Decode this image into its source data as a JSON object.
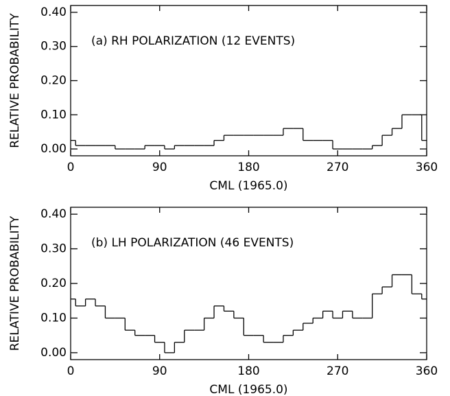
{
  "chart_data": [
    {
      "type": "histogram",
      "annotation": "(a) RH POLARIZATION (12 EVENTS)",
      "xlabel": "CML (1965.0)",
      "ylabel": "RELATIVE PROBABILITY",
      "bins": [
        0,
        5,
        15,
        25,
        35,
        45,
        55,
        65,
        75,
        85,
        95,
        105,
        115,
        125,
        135,
        145,
        155,
        165,
        175,
        185,
        195,
        205,
        215,
        225,
        235,
        245,
        255,
        265,
        275,
        285,
        295,
        305,
        315,
        325,
        335,
        345,
        355,
        360
      ],
      "values": [
        0.025,
        0.01,
        0.01,
        0.01,
        0.01,
        0,
        0,
        0,
        0.01,
        0.01,
        0,
        0.01,
        0.01,
        0.01,
        0.01,
        0.025,
        0.04,
        0.04,
        0.04,
        0.04,
        0.04,
        0.04,
        0.06,
        0.06,
        0.025,
        0.025,
        0.025,
        0,
        0,
        0,
        0,
        0.01,
        0.04,
        0.06,
        0.1,
        0.1,
        0.025
      ],
      "color": "#000000",
      "xlim": [
        0,
        360
      ],
      "xticks": [
        0,
        90,
        180,
        270,
        360
      ],
      "ylim": [
        -0.02,
        0.42
      ],
      "yticks": [
        {
          "value": 0,
          "label": "0.00"
        },
        {
          "value": 0.1,
          "label": "0.10"
        },
        {
          "value": 0.2,
          "label": "0.20"
        },
        {
          "value": 0.3,
          "label": "0.30"
        },
        {
          "value": 0.4,
          "label": "0.40"
        }
      ]
    },
    {
      "type": "histogram",
      "annotation": "(b) LH POLARIZATION (46 EVENTS)",
      "xlabel": "CML (1965.0)",
      "ylabel": "RELATIVE PROBABILITY",
      "bins": [
        0,
        5,
        15,
        25,
        35,
        45,
        55,
        65,
        75,
        85,
        95,
        105,
        115,
        125,
        135,
        145,
        155,
        165,
        175,
        185,
        195,
        205,
        215,
        225,
        235,
        245,
        255,
        265,
        275,
        285,
        295,
        305,
        315,
        325,
        335,
        345,
        355,
        360
      ],
      "values": [
        0.155,
        0.135,
        0.155,
        0.135,
        0.1,
        0.1,
        0.065,
        0.05,
        0.05,
        0.03,
        0,
        0.03,
        0.065,
        0.065,
        0.1,
        0.135,
        0.12,
        0.1,
        0.05,
        0.05,
        0.03,
        0.03,
        0.05,
        0.065,
        0.085,
        0.1,
        0.12,
        0.1,
        0.12,
        0.1,
        0.1,
        0.17,
        0.19,
        0.225,
        0.225,
        0.17,
        0.155
      ],
      "color": "#000000",
      "xlim": [
        0,
        360
      ],
      "xticks": [
        0,
        90,
        180,
        270,
        360
      ],
      "ylim": [
        -0.02,
        0.42
      ],
      "yticks": [
        {
          "value": 0,
          "label": "0.00"
        },
        {
          "value": 0.1,
          "label": "0.10"
        },
        {
          "value": 0.2,
          "label": "0.20"
        },
        {
          "value": 0.3,
          "label": "0.30"
        },
        {
          "value": 0.4,
          "label": "0.40"
        }
      ]
    }
  ]
}
